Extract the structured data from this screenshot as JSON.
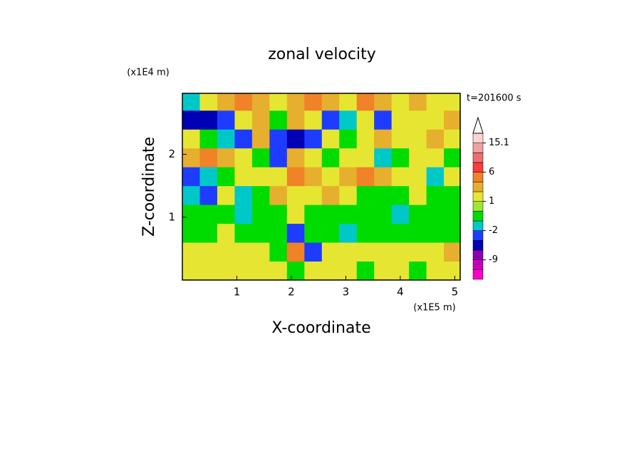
{
  "chart_data": {
    "type": "contour",
    "title": "zonal velocity",
    "x_label": "X-coordinate",
    "y_label": "Z-coordinate",
    "x_scale_label": "(x1E5 m)",
    "y_scale_label": "(x1E4 m)",
    "annotation": "t=201600 s",
    "xlim": [
      0,
      5.1
    ],
    "ylim": [
      0,
      2.97
    ],
    "xticks": [
      1,
      2,
      3,
      4,
      5
    ],
    "yticks": [
      1,
      2
    ],
    "x": [
      0.16,
      0.48,
      0.8,
      1.12,
      1.44,
      1.76,
      2.08,
      2.4,
      2.72,
      3.04,
      3.36,
      3.68,
      4.0,
      4.32,
      4.64,
      4.96
    ],
    "y": [
      0.15,
      0.45,
      0.75,
      1.05,
      1.35,
      1.65,
      1.95,
      2.25,
      2.55,
      2.85
    ],
    "z": [
      [
        1.5,
        1.5,
        1.5,
        1.5,
        1.5,
        1.5,
        -0.5,
        1.5,
        1.5,
        1.5,
        -0.5,
        1.5,
        1.5,
        -0.5,
        1.5,
        1.5
      ],
      [
        1.5,
        1.5,
        1.5,
        1.5,
        1.5,
        -0.5,
        5,
        -3,
        1.5,
        1.5,
        1.5,
        1.5,
        1.5,
        1.5,
        1.5,
        3
      ],
      [
        -0.5,
        -0.5,
        1.5,
        -0.5,
        -0.5,
        -0.5,
        -3,
        -0.5,
        -0.5,
        -1.5,
        -0.5,
        -0.5,
        -0.5,
        -0.5,
        -0.5,
        -0.5
      ],
      [
        -0.5,
        -0.5,
        -0.5,
        -1.5,
        -0.5,
        -0.5,
        1.5,
        -0.5,
        -0.5,
        -0.5,
        -0.5,
        -0.5,
        -1.5,
        -0.5,
        -0.5,
        -0.5
      ],
      [
        -1.5,
        -3,
        1.5,
        -1.5,
        -0.5,
        3,
        1.5,
        1.5,
        3,
        1.5,
        -0.5,
        -0.5,
        -0.5,
        1.5,
        -0.5,
        -0.5
      ],
      [
        -3,
        -1.5,
        -0.5,
        1.5,
        1.5,
        1.5,
        5,
        3,
        1.5,
        3,
        5,
        3,
        1.5,
        1.5,
        -1.5,
        1.5
      ],
      [
        3,
        5,
        3,
        1.5,
        -0.5,
        -3,
        3,
        1.5,
        -0.5,
        1.5,
        1.5,
        -1.5,
        -0.5,
        1.5,
        1.5,
        -0.5
      ],
      [
        1.5,
        -0.5,
        -1.5,
        -3,
        3,
        -3,
        -5,
        -3,
        1.5,
        -0.5,
        1.5,
        3,
        1.5,
        1.5,
        3,
        1.5
      ],
      [
        -5,
        -5,
        -3,
        1.5,
        3,
        -0.5,
        3,
        1.5,
        -3,
        -1.5,
        1.5,
        -3,
        1.5,
        1.5,
        1.5,
        3
      ],
      [
        -1.5,
        1.5,
        3,
        5,
        3,
        1.5,
        3,
        5,
        3,
        1.5,
        5,
        3,
        1.5,
        3,
        1.5,
        1.5
      ]
    ],
    "levels": [
      -12,
      -9,
      -6,
      -4,
      -2,
      -1,
      0,
      1,
      2,
      4,
      6,
      9,
      12,
      15.1
    ],
    "colors": [
      "#ff00c8",
      "#c800b4",
      "#8c00b4",
      "#0000b4",
      "#1e3cff",
      "#00c8c8",
      "#00dc00",
      "#a0e632",
      "#e6e632",
      "#e6af2d",
      "#f08228",
      "#fa3c3c",
      "#f06e6e",
      "#f0a0a0",
      "#ffd2d2"
    ],
    "colorbar_ticks": [
      15.1,
      6,
      1,
      -2,
      -9
    ]
  }
}
